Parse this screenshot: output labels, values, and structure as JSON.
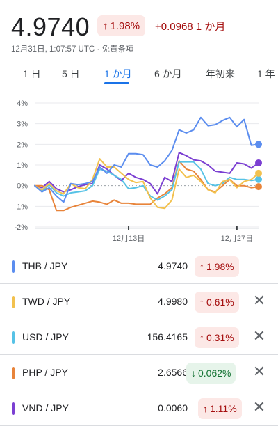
{
  "header": {
    "price": "4.9740",
    "pct_change": "1.98%",
    "pct_arrow": "↑",
    "abs_change": "+0.0968 1 か月",
    "timestamp": "12月31日, 1:07:57 UTC · 免責条項"
  },
  "tabs": [
    {
      "label": "1 日"
    },
    {
      "label": "5 日"
    },
    {
      "label": "1 か月",
      "active": true
    },
    {
      "label": "6 か月"
    },
    {
      "label": "年初来"
    },
    {
      "label": "1 年"
    }
  ],
  "colors": {
    "up": "#a50e0e",
    "down": "#137333",
    "accent": "#1a73e8",
    "THB": "#5b8def",
    "TWD": "#f2c14e",
    "USD": "#56c2e6",
    "PHP": "#e8843a",
    "VND": "#7b3fd2"
  },
  "chart_data": {
    "type": "line",
    "yticks": [
      "4%",
      "3%",
      "2%",
      "1%",
      "0%",
      "-1%",
      "-2%"
    ],
    "ylim": [
      -2,
      4
    ],
    "xticks": [
      "12月13日",
      "12月27日"
    ],
    "series": [
      {
        "name": "THB / JPY",
        "color": "#5b8def",
        "values": [
          0,
          -0.3,
          -0.1,
          -0.5,
          -0.8,
          0.1,
          0.05,
          0.1,
          0.2,
          0.9,
          0.6,
          1.0,
          0.9,
          1.55,
          1.55,
          1.5,
          1.0,
          0.9,
          1.2,
          1.7,
          2.7,
          2.55,
          2.7,
          3.3,
          2.9,
          2.95,
          3.15,
          3.3,
          2.85,
          3.2,
          1.95,
          2.0
        ]
      },
      {
        "name": "TWD / JPY",
        "color": "#f2c14e",
        "values": [
          0,
          -0.2,
          0.1,
          -0.25,
          -0.4,
          0.1,
          -0.1,
          -0.15,
          0.3,
          1.3,
          0.9,
          0.9,
          0.6,
          0.3,
          0.15,
          0.2,
          -0.6,
          -1.05,
          -1.1,
          -0.7,
          0.8,
          0.4,
          0.5,
          0.2,
          -0.2,
          -0.35,
          0.2,
          0.3,
          -0.1,
          0.2,
          0.3,
          0.6
        ]
      },
      {
        "name": "USD / JPY",
        "color": "#56c2e6",
        "values": [
          0,
          -0.25,
          0.05,
          -0.35,
          -0.5,
          -0.35,
          -0.3,
          -0.25,
          0.0,
          0.8,
          0.7,
          0.5,
          0.3,
          -0.15,
          -0.1,
          0.0,
          -0.5,
          -0.7,
          -0.5,
          -0.2,
          1.15,
          1.15,
          1.15,
          0.8,
          0.1,
          0.0,
          0.1,
          0.4,
          0.3,
          0.3,
          0.25,
          0.3
        ]
      },
      {
        "name": "PHP / JPY",
        "color": "#e8843a",
        "values": [
          0,
          0.0,
          -0.2,
          -1.2,
          -1.2,
          -1.05,
          -0.95,
          -0.85,
          -0.75,
          -0.8,
          -0.9,
          -0.7,
          -0.85,
          -0.85,
          -0.9,
          -0.9,
          -0.9,
          -0.6,
          -0.4,
          -0.1,
          1.2,
          0.8,
          0.7,
          0.3,
          -0.2,
          -0.3,
          0.0,
          0.3,
          0.0,
          0.0,
          -0.1,
          -0.05
        ]
      },
      {
        "name": "VND / JPY",
        "color": "#7b3fd2",
        "values": [
          0,
          -0.1,
          0.2,
          -0.15,
          -0.3,
          -0.2,
          -0.05,
          0.05,
          0.1,
          1.0,
          0.8,
          0.5,
          0.25,
          0.6,
          0.4,
          0.3,
          0.1,
          -0.4,
          0.4,
          0.2,
          1.6,
          1.45,
          1.25,
          1.2,
          1.0,
          0.7,
          0.65,
          0.6,
          1.1,
          1.05,
          0.85,
          1.1
        ]
      }
    ]
  },
  "rows": [
    {
      "pair": "THB / JPY",
      "value": "4.9740",
      "change": "1.98%",
      "arrow": "↑",
      "dir": "up",
      "color": "#5b8def",
      "closable": false
    },
    {
      "pair": "TWD / JPY",
      "value": "4.9980",
      "change": "0.61%",
      "arrow": "↑",
      "dir": "up",
      "color": "#f2c14e",
      "closable": true
    },
    {
      "pair": "USD / JPY",
      "value": "156.4165",
      "change": "0.31%",
      "arrow": "↑",
      "dir": "up",
      "color": "#56c2e6",
      "closable": true
    },
    {
      "pair": "PHP / JPY",
      "value": "2.6566",
      "change": "0.062%",
      "arrow": "↓",
      "dir": "down",
      "color": "#e8843a",
      "closable": true
    },
    {
      "pair": "VND / JPY",
      "value": "0.0060",
      "change": "1.11%",
      "arrow": "↑",
      "dir": "up",
      "color": "#7b3fd2",
      "closable": true
    }
  ],
  "close_icon": "close-icon"
}
